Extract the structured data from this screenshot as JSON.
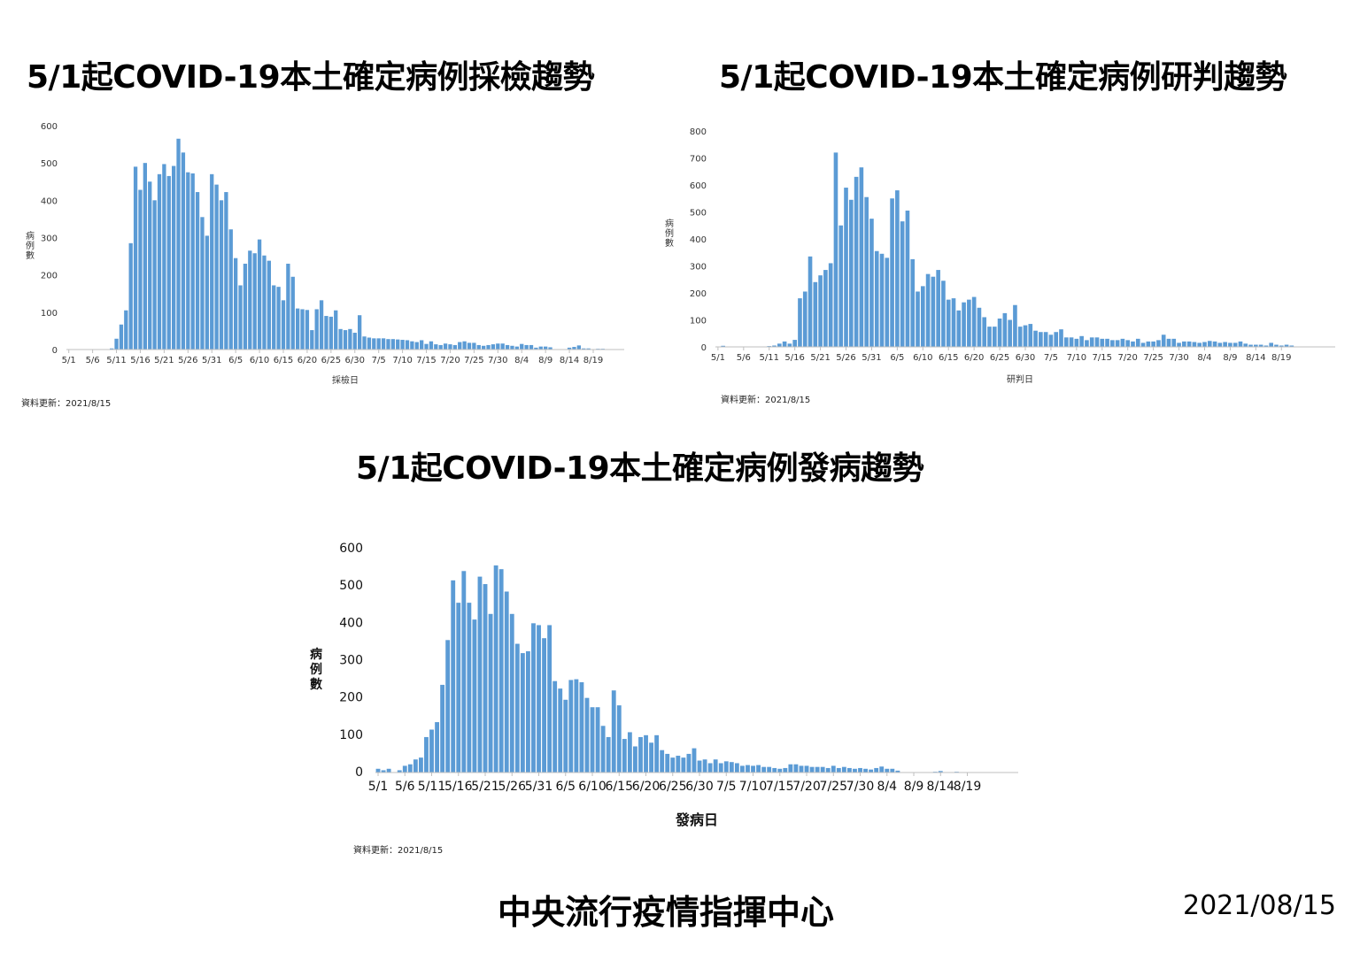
{
  "colors": {
    "bar": "#5b9bd5",
    "axis": "#bfbfbf"
  },
  "chart_data": [
    {
      "type": "bar",
      "title": "5/1起COVID-19本土確定病例採檢趨勢",
      "xlabel": "採檢日",
      "ylabel": "病例數",
      "ylim": [
        0,
        600
      ],
      "yticks": [
        0,
        100,
        200,
        300,
        400,
        500,
        600
      ],
      "xtick_labels": [
        "5/1",
        "5/6",
        "5/11",
        "5/16",
        "5/21",
        "5/26",
        "5/31",
        "6/5",
        "6/10",
        "6/15",
        "6/20",
        "6/25",
        "6/30",
        "7/5",
        "7/10",
        "7/15",
        "7/20",
        "7/25",
        "7/30",
        "8/4",
        "8/9",
        "8/14",
        "8/19"
      ],
      "start_date": "5/1",
      "values": [
        0,
        0,
        0,
        0,
        0,
        0,
        0,
        0,
        1,
        3,
        29,
        67,
        105,
        285,
        490,
        428,
        500,
        450,
        400,
        470,
        497,
        465,
        492,
        565,
        528,
        475,
        472,
        422,
        355,
        305,
        470,
        442,
        400,
        422,
        322,
        245,
        172,
        230,
        265,
        258,
        295,
        252,
        238,
        172,
        168,
        132,
        230,
        195,
        110,
        108,
        106,
        52,
        108,
        132,
        90,
        88,
        105,
        55,
        52,
        55,
        45,
        92,
        35,
        32,
        30,
        30,
        30,
        28,
        28,
        27,
        26,
        25,
        22,
        20,
        25,
        15,
        22,
        14,
        12,
        16,
        14,
        12,
        20,
        22,
        18,
        18,
        12,
        10,
        12,
        14,
        16,
        16,
        12,
        10,
        8,
        15,
        12,
        12,
        5,
        8,
        8,
        6,
        0,
        0,
        0,
        5,
        7,
        11,
        3,
        3,
        1,
        2,
        2,
        1,
        0,
        0,
        0
      ],
      "update_note": "資料更新：2021/8/15"
    },
    {
      "type": "bar",
      "title": "5/1起COVID-19本土確定病例研判趨勢",
      "xlabel": "研判日",
      "ylabel": "病例數",
      "ylim": [
        0,
        800
      ],
      "yticks": [
        0,
        100,
        200,
        300,
        400,
        500,
        600,
        700,
        800
      ],
      "xtick_labels": [
        "5/1",
        "5/6",
        "5/11",
        "5/16",
        "5/21",
        "5/26",
        "5/31",
        "6/5",
        "6/10",
        "6/15",
        "6/20",
        "6/25",
        "6/30",
        "7/5",
        "7/10",
        "7/15",
        "7/20",
        "7/25",
        "7/30",
        "8/4",
        "8/9",
        "8/14",
        "8/19"
      ],
      "start_date": "5/1",
      "values": [
        0,
        4,
        0,
        0,
        0,
        0,
        0,
        0,
        0,
        0,
        3,
        5,
        12,
        20,
        12,
        26,
        180,
        205,
        335,
        240,
        265,
        285,
        310,
        720,
        450,
        590,
        545,
        630,
        665,
        555,
        475,
        355,
        345,
        330,
        550,
        580,
        465,
        505,
        325,
        205,
        225,
        270,
        260,
        285,
        245,
        175,
        180,
        135,
        165,
        175,
        185,
        145,
        110,
        75,
        75,
        105,
        125,
        100,
        155,
        75,
        80,
        85,
        60,
        55,
        55,
        45,
        55,
        65,
        35,
        35,
        30,
        40,
        25,
        35,
        35,
        30,
        30,
        25,
        25,
        30,
        25,
        20,
        30,
        15,
        20,
        20,
        25,
        45,
        30,
        30,
        15,
        20,
        20,
        18,
        15,
        18,
        22,
        20,
        15,
        18,
        15,
        15,
        20,
        12,
        8,
        8,
        8,
        5,
        15,
        8,
        5,
        8,
        5,
        0,
        0,
        0,
        0,
        0,
        0,
        0,
        0
      ],
      "update_note": "資料更新：2021/8/15"
    },
    {
      "type": "bar",
      "title": "5/1起COVID-19本土確定病例發病趨勢",
      "xlabel": "發病日",
      "ylabel": "病例數",
      "ylim": [
        0,
        600
      ],
      "yticks": [
        0,
        100,
        200,
        300,
        400,
        500,
        600
      ],
      "xtick_labels": [
        "5/1",
        "5/6",
        "5/11",
        "5/16",
        "5/21",
        "5/26",
        "5/31",
        "6/5",
        "6/10",
        "6/15",
        "6/20",
        "6/25",
        "6/30",
        "7/5",
        "7/10",
        "7/15",
        "7/20",
        "7/25",
        "7/30",
        "8/4",
        "8/9",
        "8/14",
        "8/19"
      ],
      "start_date": "5/1",
      "values": [
        10,
        6,
        10,
        0,
        6,
        18,
        22,
        35,
        40,
        95,
        115,
        135,
        235,
        355,
        515,
        455,
        540,
        455,
        410,
        525,
        505,
        425,
        555,
        545,
        485,
        425,
        345,
        320,
        325,
        400,
        395,
        360,
        395,
        245,
        225,
        195,
        248,
        250,
        242,
        200,
        175,
        175,
        125,
        95,
        220,
        180,
        90,
        108,
        70,
        95,
        100,
        80,
        100,
        60,
        50,
        40,
        45,
        40,
        50,
        65,
        32,
        35,
        25,
        35,
        25,
        30,
        28,
        25,
        18,
        20,
        18,
        20,
        15,
        15,
        12,
        10,
        12,
        22,
        22,
        18,
        18,
        15,
        15,
        15,
        12,
        18,
        12,
        15,
        12,
        10,
        12,
        10,
        8,
        12,
        16,
        10,
        10,
        5,
        0,
        0,
        0,
        0,
        0,
        0,
        2,
        4,
        0,
        1,
        2,
        1,
        1,
        0,
        1,
        1,
        0,
        1,
        0,
        0,
        0,
        0
      ],
      "update_note": "資料更新：2021/8/15"
    }
  ],
  "footer": {
    "agency": "中央流行疫情指揮中心",
    "date": "2021/08/15"
  }
}
